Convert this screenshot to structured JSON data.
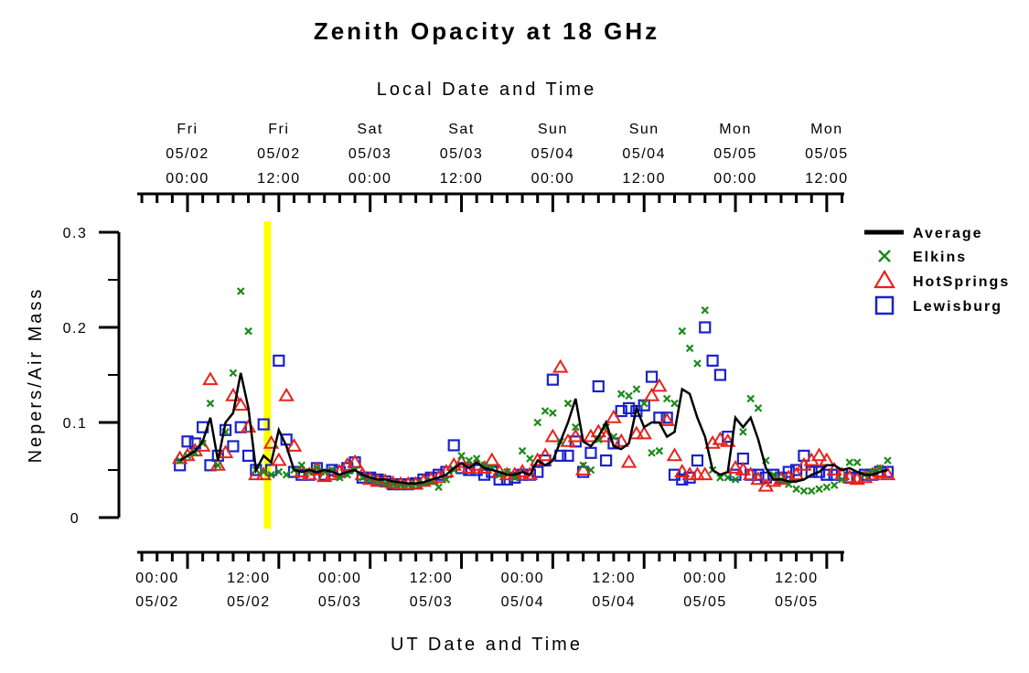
{
  "chart_data": {
    "type": "line",
    "title": "Zenith Opacity at 18 GHz",
    "xlabel": "UT Date and Time",
    "x2label": "Local Date and Time",
    "ylabel": "Nepers/Air Mass",
    "ylim": [
      0,
      0.3
    ],
    "xlim": [
      "05/01 21:00",
      "05/05 20:00"
    ],
    "x_unit_note": "UT hours since 05/02 00:00",
    "yticks": [
      "0",
      "0.1",
      "0.2",
      "0.3"
    ],
    "x_ticks_bottom": [
      {
        "l1": "00:00",
        "l2": "05/02"
      },
      {
        "l1": "12:00",
        "l2": "05/02"
      },
      {
        "l1": "00:00",
        "l2": "05/03"
      },
      {
        "l1": "12:00",
        "l2": "05/03"
      },
      {
        "l1": "00:00",
        "l2": "05/04"
      },
      {
        "l1": "12:00",
        "l2": "05/04"
      },
      {
        "l1": "00:00",
        "l2": "05/05"
      },
      {
        "l1": "12:00",
        "l2": "05/05"
      }
    ],
    "x_ticks_top": [
      {
        "l1": "Fri",
        "l2": "05/02",
        "l3": "00:00"
      },
      {
        "l1": "Fri",
        "l2": "05/02",
        "l3": "12:00"
      },
      {
        "l1": "Sat",
        "l2": "05/03",
        "l3": "00:00"
      },
      {
        "l1": "Sat",
        "l2": "05/03",
        "l3": "12:00"
      },
      {
        "l1": "Sun",
        "l2": "05/04",
        "l3": "00:00"
      },
      {
        "l1": "Sun",
        "l2": "05/04",
        "l3": "12:00"
      },
      {
        "l1": "Mon",
        "l2": "05/05",
        "l3": "00:00"
      },
      {
        "l1": "Mon",
        "l2": "05/05",
        "l3": "12:00"
      }
    ],
    "highlight": {
      "x": 10.5,
      "color": "#ffff00"
    },
    "legend_position": "right",
    "series": [
      {
        "name": "Average",
        "style": "line",
        "color": "#000000",
        "x": [
          -1,
          0,
          1,
          2,
          3,
          4,
          5,
          6,
          7,
          8,
          9,
          10,
          11,
          12,
          13,
          14,
          15,
          16,
          17,
          18,
          19,
          20,
          21,
          22,
          23,
          24,
          25,
          26,
          27,
          28,
          29,
          30,
          31,
          32,
          33,
          34,
          35,
          36,
          37,
          38,
          39,
          40,
          41,
          42,
          43,
          44,
          45,
          46,
          47,
          48,
          49,
          50,
          51,
          52,
          53,
          54,
          55,
          56,
          57,
          58,
          59,
          60,
          61,
          62,
          63,
          64,
          65,
          66,
          67,
          68,
          69,
          70,
          71,
          72,
          73,
          74,
          75,
          76,
          77,
          78,
          79,
          80,
          81,
          82,
          83,
          84,
          85,
          86,
          87,
          88,
          89,
          90,
          91,
          92
        ],
        "y": [
          0.06,
          0.065,
          0.07,
          0.08,
          0.105,
          0.06,
          0.1,
          0.11,
          0.152,
          0.115,
          0.05,
          0.065,
          0.058,
          0.092,
          0.075,
          0.05,
          0.048,
          0.05,
          0.048,
          0.05,
          0.048,
          0.045,
          0.048,
          0.05,
          0.045,
          0.042,
          0.04,
          0.04,
          0.038,
          0.037,
          0.036,
          0.036,
          0.037,
          0.04,
          0.042,
          0.045,
          0.052,
          0.057,
          0.052,
          0.058,
          0.052,
          0.05,
          0.048,
          0.045,
          0.045,
          0.048,
          0.045,
          0.06,
          0.055,
          0.06,
          0.08,
          0.1,
          0.125,
          0.08,
          0.075,
          0.085,
          0.1,
          0.075,
          0.072,
          0.078,
          0.115,
          0.095,
          0.1,
          0.1,
          0.085,
          0.09,
          0.135,
          0.13,
          0.105,
          0.085,
          0.05,
          0.045,
          0.048,
          0.105,
          0.095,
          0.105,
          0.082,
          0.052,
          0.04,
          0.04,
          0.038,
          0.038,
          0.04,
          0.045,
          0.048,
          0.055,
          0.055,
          0.05,
          0.052,
          0.048,
          0.045,
          0.045,
          0.048,
          0.05
        ]
      },
      {
        "name": "Elkins",
        "style": "x",
        "color": "#1a8a1a",
        "x": [
          -1,
          0,
          1,
          2,
          3,
          4,
          5,
          6,
          7,
          8,
          9,
          10,
          11,
          12,
          13,
          14,
          15,
          16,
          17,
          18,
          19,
          20,
          21,
          22,
          23,
          24,
          25,
          26,
          27,
          28,
          29,
          30,
          31,
          32,
          33,
          34,
          35,
          36,
          37,
          38,
          39,
          40,
          41,
          42,
          43,
          44,
          45,
          46,
          47,
          48,
          49,
          50,
          51,
          52,
          53,
          54,
          55,
          56,
          57,
          58,
          59,
          60,
          61,
          62,
          63,
          64,
          65,
          66,
          67,
          68,
          69,
          70,
          71,
          72,
          73,
          74,
          75,
          76,
          77,
          78,
          79,
          80,
          81,
          82,
          83,
          84,
          85,
          86,
          87,
          88,
          89,
          90,
          91,
          92
        ],
        "y": [
          0.06,
          0.065,
          0.068,
          0.078,
          0.12,
          0.055,
          0.09,
          0.152,
          0.238,
          0.196,
          0.05,
          0.048,
          0.045,
          0.048,
          0.045,
          0.05,
          0.055,
          0.048,
          0.052,
          0.048,
          0.05,
          0.042,
          0.045,
          0.05,
          0.042,
          0.04,
          0.038,
          0.036,
          0.035,
          0.034,
          0.034,
          0.035,
          0.036,
          0.038,
          0.032,
          0.04,
          0.05,
          0.065,
          0.06,
          0.062,
          0.055,
          0.052,
          0.045,
          0.048,
          0.042,
          0.07,
          0.062,
          0.1,
          0.112,
          0.11,
          0.08,
          0.12,
          0.095,
          0.055,
          0.05,
          0.082,
          0.095,
          0.085,
          0.13,
          0.128,
          0.135,
          0.12,
          0.068,
          0.07,
          0.125,
          0.12,
          0.196,
          0.178,
          0.162,
          0.218,
          0.05,
          0.042,
          0.042,
          0.04,
          0.09,
          0.125,
          0.115,
          0.06,
          0.045,
          0.04,
          0.035,
          0.03,
          0.028,
          0.028,
          0.03,
          0.032,
          0.034,
          0.04,
          0.058,
          0.058,
          0.045,
          0.048,
          0.052,
          0.06
        ]
      },
      {
        "name": "HotSprings",
        "style": "triangle",
        "color": "#e8221a",
        "x": [
          -1,
          0,
          1,
          2,
          3,
          4,
          5,
          6,
          7,
          8,
          9,
          10,
          11,
          12,
          13,
          14,
          15,
          16,
          17,
          18,
          19,
          20,
          21,
          22,
          23,
          24,
          25,
          26,
          27,
          28,
          29,
          30,
          31,
          32,
          33,
          34,
          35,
          36,
          37,
          38,
          39,
          40,
          41,
          42,
          43,
          44,
          45,
          46,
          47,
          48,
          49,
          50,
          51,
          52,
          53,
          54,
          55,
          56,
          57,
          58,
          59,
          60,
          61,
          62,
          63,
          64,
          65,
          66,
          67,
          68,
          69,
          70,
          71,
          72,
          73,
          74,
          75,
          76,
          77,
          78,
          79,
          80,
          81,
          82,
          83,
          84,
          85,
          86,
          87,
          88,
          89,
          90,
          91,
          92
        ],
        "y": [
          0.062,
          0.065,
          0.07,
          0.075,
          0.145,
          0.055,
          0.068,
          0.128,
          0.118,
          0.095,
          0.045,
          0.045,
          0.078,
          0.06,
          0.128,
          0.075,
          0.048,
          0.045,
          0.05,
          0.043,
          0.045,
          0.048,
          0.055,
          0.058,
          0.045,
          0.04,
          0.038,
          0.038,
          0.036,
          0.035,
          0.035,
          0.035,
          0.038,
          0.04,
          0.042,
          0.048,
          0.055,
          0.058,
          0.052,
          0.055,
          0.052,
          0.06,
          0.048,
          0.045,
          0.045,
          0.048,
          0.045,
          0.06,
          0.065,
          0.085,
          0.158,
          0.08,
          0.085,
          0.05,
          0.085,
          0.09,
          0.085,
          0.105,
          0.08,
          0.058,
          0.088,
          0.088,
          0.128,
          0.138,
          0.102,
          0.065,
          0.048,
          0.045,
          0.045,
          0.045,
          0.078,
          0.082,
          0.08,
          0.052,
          0.05,
          0.045,
          0.04,
          0.033,
          0.038,
          0.04,
          0.042,
          0.045,
          0.055,
          0.06,
          0.065,
          0.06,
          0.05,
          0.045,
          0.042,
          0.04,
          0.042,
          0.045,
          0.048,
          0.045
        ]
      },
      {
        "name": "Lewisburg",
        "style": "square",
        "color": "#1a22cc",
        "x": [
          -1,
          0,
          1,
          2,
          3,
          4,
          5,
          6,
          7,
          8,
          9,
          10,
          11,
          12,
          13,
          14,
          15,
          16,
          17,
          18,
          19,
          20,
          21,
          22,
          23,
          24,
          25,
          26,
          27,
          28,
          29,
          30,
          31,
          32,
          33,
          34,
          35,
          36,
          37,
          38,
          39,
          40,
          41,
          42,
          43,
          44,
          45,
          46,
          47,
          48,
          49,
          50,
          51,
          52,
          53,
          54,
          55,
          56,
          57,
          58,
          59,
          60,
          61,
          62,
          63,
          64,
          65,
          66,
          67,
          68,
          69,
          70,
          71,
          72,
          73,
          74,
          75,
          76,
          77,
          78,
          79,
          80,
          81,
          82,
          83,
          84,
          85,
          86,
          87,
          88,
          89,
          90,
          91,
          92
        ],
        "y": [
          0.055,
          0.08,
          0.078,
          0.095,
          0.055,
          0.065,
          0.092,
          0.075,
          0.095,
          0.065,
          0.05,
          0.098,
          0.05,
          0.165,
          0.082,
          0.048,
          0.045,
          0.045,
          0.052,
          0.045,
          0.05,
          0.048,
          0.052,
          0.058,
          0.042,
          0.042,
          0.04,
          0.038,
          0.035,
          0.035,
          0.035,
          0.036,
          0.04,
          0.042,
          0.045,
          0.048,
          0.076,
          0.052,
          0.05,
          0.05,
          0.045,
          0.048,
          0.04,
          0.04,
          0.042,
          0.045,
          0.045,
          0.048,
          0.06,
          0.145,
          0.065,
          0.065,
          0.08,
          0.048,
          0.068,
          0.138,
          0.06,
          0.078,
          0.112,
          0.115,
          0.112,
          0.118,
          0.148,
          0.105,
          0.105,
          0.045,
          0.04,
          0.042,
          0.06,
          0.2,
          0.165,
          0.15,
          0.085,
          0.045,
          0.062,
          0.045,
          0.045,
          0.042,
          0.045,
          0.042,
          0.048,
          0.05,
          0.065,
          0.048,
          0.048,
          0.045,
          0.045,
          0.045,
          0.042,
          0.042,
          0.045,
          0.045,
          0.048,
          0.048
        ]
      }
    ]
  }
}
